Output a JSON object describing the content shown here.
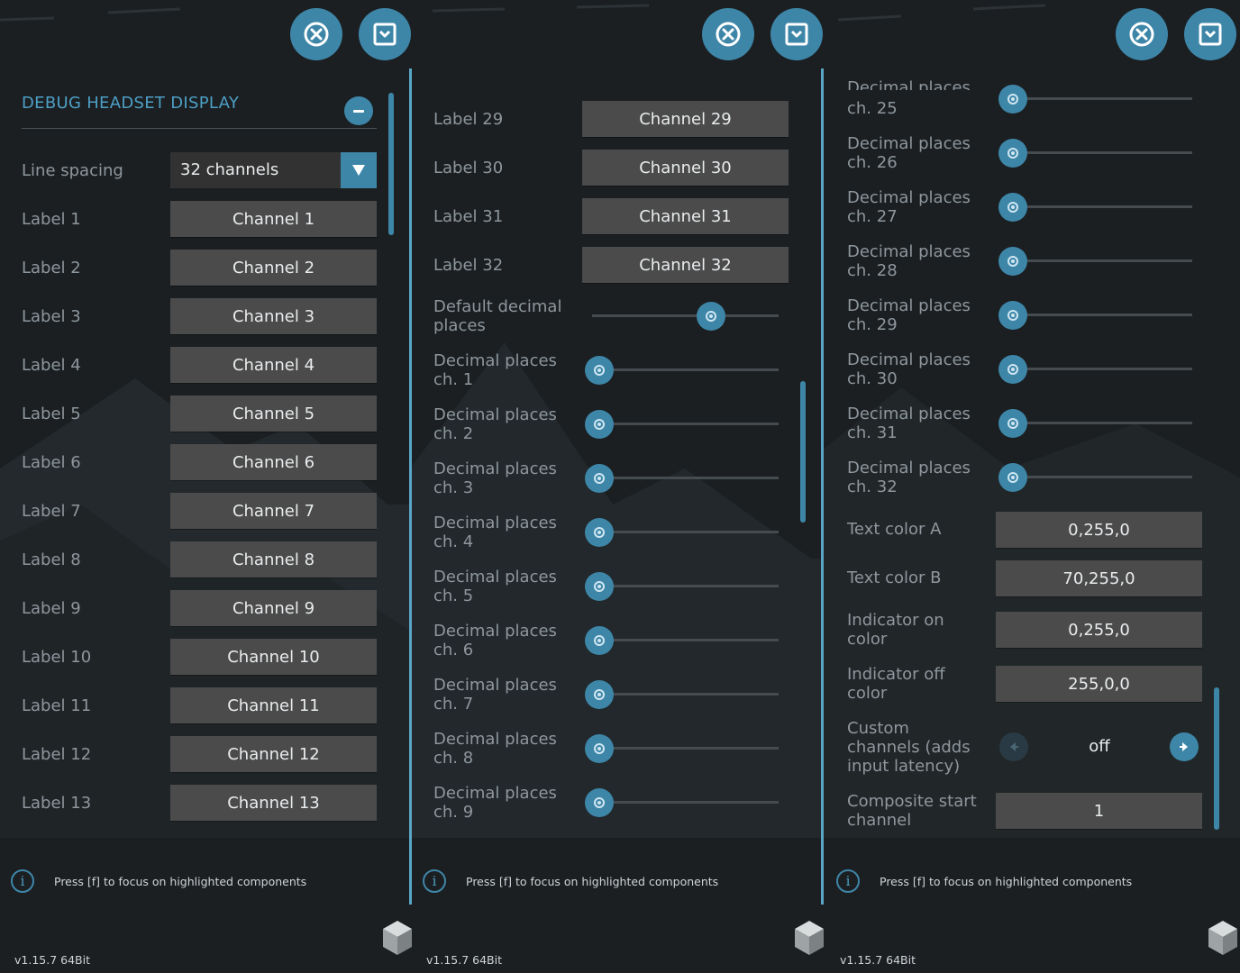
{
  "colors": {
    "accent": "#3e86a8",
    "accent_text": "#4d9fc5",
    "background": "#1b1f22",
    "field_bg": "#4b4b4b",
    "label_text": "#8e979d"
  },
  "icons": {
    "close": "close-icon",
    "minimize": "chevron-down-icon",
    "collapse": "minus-icon",
    "info": "info-icon",
    "cube": "cube-icon"
  },
  "panel1": {
    "title": "DEBUG HEADSET DISPLAY",
    "line_spacing": {
      "label": "Line spacing",
      "value": "32 channels"
    },
    "labels": [
      {
        "label": "Label 1",
        "value": "Channel 1"
      },
      {
        "label": "Label 2",
        "value": "Channel 2"
      },
      {
        "label": "Label 3",
        "value": "Channel 3"
      },
      {
        "label": "Label 4",
        "value": "Channel 4"
      },
      {
        "label": "Label 5",
        "value": "Channel 5"
      },
      {
        "label": "Label 6",
        "value": "Channel 6"
      },
      {
        "label": "Label 7",
        "value": "Channel 7"
      },
      {
        "label": "Label 8",
        "value": "Channel 8"
      },
      {
        "label": "Label 9",
        "value": "Channel 9"
      },
      {
        "label": "Label 10",
        "value": "Channel 10"
      },
      {
        "label": "Label 11",
        "value": "Channel 11"
      },
      {
        "label": "Label 12",
        "value": "Channel 12"
      },
      {
        "label": "Label 13",
        "value": "Channel 13"
      }
    ],
    "scroll_position": 0.0
  },
  "panel2": {
    "labels": [
      {
        "label": "Label 29",
        "value": "Channel 29"
      },
      {
        "label": "Label 30",
        "value": "Channel 30"
      },
      {
        "label": "Label 31",
        "value": "Channel 31"
      },
      {
        "label": "Label 32",
        "value": "Channel 32"
      }
    ],
    "default_decimal": {
      "line1": "Default decimal",
      "line2": "places",
      "level": 0.65
    },
    "decimal_places": [
      {
        "line1": "Decimal places",
        "line2": "ch. 1",
        "level": 0.0
      },
      {
        "line1": "Decimal places",
        "line2": "ch. 2",
        "level": 0.0
      },
      {
        "line1": "Decimal places",
        "line2": "ch. 3",
        "level": 0.0
      },
      {
        "line1": "Decimal places",
        "line2": "ch. 4",
        "level": 0.0
      },
      {
        "line1": "Decimal places",
        "line2": "ch. 5",
        "level": 0.0
      },
      {
        "line1": "Decimal places",
        "line2": "ch. 6",
        "level": 0.0
      },
      {
        "line1": "Decimal places",
        "line2": "ch. 7",
        "level": 0.0
      },
      {
        "line1": "Decimal places",
        "line2": "ch. 8",
        "level": 0.0
      },
      {
        "line1": "Decimal places",
        "line2": "ch. 9",
        "level": 0.0
      }
    ],
    "scroll_position": 0.5
  },
  "panel3": {
    "top_partial_label": "Decimal places",
    "decimal_places": [
      {
        "line1": "",
        "line2": "ch. 25",
        "level": 0.0
      },
      {
        "line1": "Decimal places",
        "line2": "ch. 26",
        "level": 0.0
      },
      {
        "line1": "Decimal places",
        "line2": "ch. 27",
        "level": 0.0
      },
      {
        "line1": "Decimal places",
        "line2": "ch. 28",
        "level": 0.0
      },
      {
        "line1": "Decimal places",
        "line2": "ch. 29",
        "level": 0.0
      },
      {
        "line1": "Decimal places",
        "line2": "ch. 30",
        "level": 0.0
      },
      {
        "line1": "Decimal places",
        "line2": "ch. 31",
        "level": 0.0
      },
      {
        "line1": "Decimal places",
        "line2": "ch. 32",
        "level": 0.0
      }
    ],
    "text_color_a": {
      "label": "Text color A",
      "value": "0,255,0"
    },
    "text_color_b": {
      "label": "Text color B",
      "value": "70,255,0"
    },
    "indicator_on": {
      "line1": "Indicator on",
      "line2": "color",
      "value": "0,255,0"
    },
    "indicator_off": {
      "line1": "Indicator off",
      "line2": "color",
      "value": "255,0,0"
    },
    "custom_channels": {
      "line1": "Custom",
      "line2": "channels (adds",
      "line3": "input latency)",
      "value": "off"
    },
    "composite_start": {
      "line1": "Composite start",
      "line2": "channel",
      "value": "1"
    },
    "scroll_position": 1.0
  },
  "footer": {
    "hint": "Press [f] to focus on highlighted components",
    "version": "v1.15.7 64Bit"
  }
}
